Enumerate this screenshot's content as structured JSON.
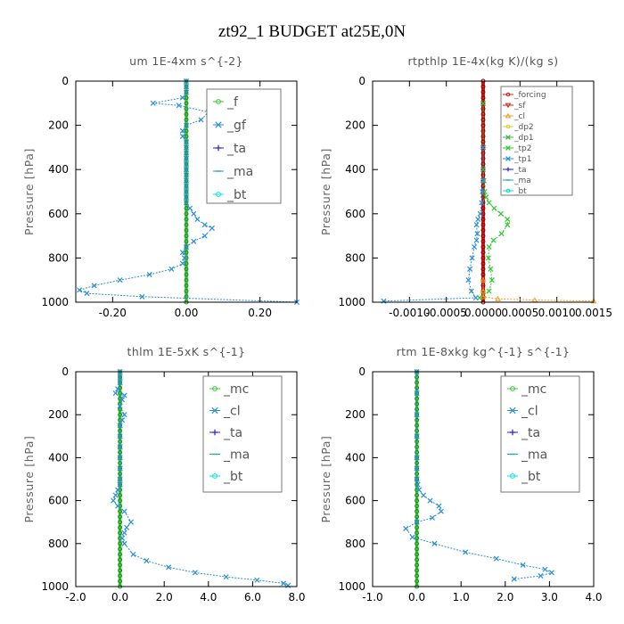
{
  "title": "zt92_1  BUDGET at25E,0N",
  "colors": {
    "f": "#3cc43c",
    "gf": "#2a8fd6",
    "ta": "#2222cc",
    "ma": "#19a8b8",
    "bt": "#00e5e5",
    "mc": "#3cc43c",
    "cl": "#2a8fd6",
    "forcing": "#cc2020",
    "sf": "#cc2020",
    "cl_r": "#f0a020",
    "dp2": "#d8d020",
    "dp1": "#3cb43c",
    "tp2": "#2ec82e",
    "tp1": "#2a8fd6",
    "ta_r": "#2222cc",
    "ma_r": "#19a8b8",
    "bt_r": "#00d8d8"
  },
  "chart_data": [
    {
      "type": "line",
      "title": "um   1E-4xm  s^{-2}",
      "ylabel": "Pressure [hPa]",
      "xlim": [
        -0.3,
        0.3
      ],
      "ylim": [
        1000,
        0
      ],
      "xticks": [
        "-0.20",
        "0.00",
        "0.20"
      ],
      "xtick_values": [
        -0.2,
        0.0,
        0.2
      ],
      "yticks": [
        "0",
        "200",
        "400",
        "600",
        "800",
        "1000"
      ],
      "ytick_values": [
        0,
        200,
        400,
        600,
        800,
        1000
      ],
      "legend_font": 14,
      "series": [
        {
          "name": "_f",
          "color_key": "f",
          "marker": "o",
          "x": [
            0,
            0,
            0,
            0,
            0,
            0,
            0,
            0,
            0,
            0,
            0,
            0,
            0,
            0,
            0,
            0,
            0,
            0,
            0,
            0,
            0,
            0,
            0,
            0,
            0,
            0,
            0,
            0,
            0,
            0,
            0,
            0,
            0,
            0,
            0,
            0,
            0,
            0,
            0,
            0,
            0
          ],
          "y": [
            0,
            25,
            50,
            75,
            100,
            125,
            150,
            175,
            200,
            225,
            250,
            275,
            300,
            325,
            350,
            375,
            400,
            425,
            450,
            475,
            500,
            525,
            550,
            575,
            600,
            625,
            650,
            675,
            700,
            725,
            750,
            775,
            800,
            825,
            850,
            875,
            900,
            925,
            950,
            975,
            1000
          ]
        },
        {
          "name": "_gf",
          "color_key": "gf",
          "marker": "x",
          "x": [
            0.0,
            0.0,
            0.0,
            -0.01,
            -0.09,
            -0.02,
            0.06,
            0.04,
            0.0,
            -0.01,
            -0.01,
            0.0,
            0.0,
            0.0,
            0.0,
            0.0,
            0.0,
            0.0,
            0.0,
            0.0,
            0.0,
            0.0,
            0.0,
            0.01,
            0.02,
            0.03,
            0.05,
            0.07,
            0.05,
            0.02,
            0.0,
            -0.01,
            -0.005,
            -0.01,
            -0.04,
            -0.1,
            -0.18,
            -0.25,
            -0.29,
            -0.27,
            -0.12,
            0.3
          ],
          "y": [
            0,
            25,
            50,
            75,
            100,
            110,
            140,
            175,
            200,
            225,
            250,
            275,
            300,
            325,
            350,
            375,
            400,
            425,
            450,
            475,
            500,
            525,
            550,
            575,
            600,
            625,
            650,
            665,
            700,
            725,
            750,
            775,
            800,
            825,
            850,
            875,
            900,
            925,
            945,
            960,
            975,
            1000
          ]
        },
        {
          "name": "_ta",
          "color_key": "ta",
          "marker": "+",
          "x": [],
          "y": []
        },
        {
          "name": "_ma",
          "color_key": "ma",
          "marker": "-",
          "x": [],
          "y": []
        },
        {
          "name": "_bt",
          "color_key": "bt",
          "marker": "o",
          "x": [],
          "y": []
        }
      ]
    },
    {
      "type": "line",
      "title": "rtpthlp   1E-4x(kg K)/(kg s)",
      "ylabel": "Pressure [hPa]",
      "xlim": [
        -0.0015,
        0.0015
      ],
      "ylim": [
        1000,
        0
      ],
      "xticks": [
        "-0.0010",
        "-0.0005",
        "0.0000",
        "0.0005",
        "0.0010",
        "0.0015"
      ],
      "xtick_values": [
        -0.001,
        -0.0005,
        0.0,
        0.0005,
        0.001,
        0.0015
      ],
      "yticks": [
        "0",
        "200",
        "400",
        "600",
        "800",
        "1000"
      ],
      "ytick_values": [
        0,
        200,
        400,
        600,
        800,
        1000
      ],
      "legend_font": 9,
      "series": [
        {
          "name": "_forcing",
          "color_key": "forcing",
          "marker": "o",
          "x": [
            0,
            0,
            0,
            0,
            0,
            0,
            0,
            0,
            0,
            0,
            0,
            0,
            0,
            0,
            0,
            0,
            0,
            0,
            0,
            0,
            0,
            0,
            0,
            0,
            0,
            0,
            0,
            0,
            0,
            0,
            0,
            0,
            0,
            0,
            0,
            0,
            0,
            0,
            0,
            0,
            0
          ],
          "y": [
            0,
            25,
            50,
            75,
            100,
            125,
            150,
            175,
            200,
            225,
            250,
            275,
            300,
            325,
            350,
            375,
            400,
            425,
            450,
            475,
            500,
            525,
            550,
            575,
            600,
            625,
            650,
            675,
            700,
            725,
            750,
            775,
            800,
            825,
            850,
            875,
            900,
            925,
            950,
            975,
            1000
          ]
        },
        {
          "name": "_sf",
          "color_key": "sf",
          "marker": "v",
          "x": [],
          "y": []
        },
        {
          "name": "_cl",
          "color_key": "cl_r",
          "marker": "^",
          "x": [
            0,
            0,
            0,
            0.0002,
            0.0007,
            0.0015
          ],
          "y": [
            900,
            950,
            975,
            985,
            990,
            995
          ]
        },
        {
          "name": "_dp2",
          "color_key": "dp2",
          "marker": "o",
          "x": [],
          "y": []
        },
        {
          "name": "_dp1",
          "color_key": "dp1",
          "marker": "x",
          "x": [],
          "y": []
        },
        {
          "name": "_tp2",
          "color_key": "tp2",
          "marker": "x",
          "x": [
            0,
            0,
            0,
            1e-05,
            2e-05,
            4e-05,
            8e-05,
            0.00015,
            0.00024,
            0.00033,
            0.00033,
            0.00025,
            0.00014,
            8e-05,
            7e-05,
            0.0001,
            0.00012,
            8e-05,
            -5e-05
          ],
          "y": [
            100,
            300,
            400,
            450,
            500,
            525,
            550,
            575,
            600,
            625,
            650,
            690,
            720,
            750,
            800,
            850,
            900,
            950,
            980
          ]
        },
        {
          "name": "_tp1",
          "color_key": "tp1",
          "marker": "x",
          "x": [
            0,
            0,
            -1e-05,
            -2e-05,
            -4e-05,
            -7e-05,
            -9e-05,
            -8e-05,
            -9e-05,
            -0.00012,
            -0.00015,
            -0.00018,
            -0.0002,
            -0.00016,
            -0.0001,
            -0.00135
          ],
          "y": [
            300,
            450,
            500,
            550,
            600,
            625,
            650,
            690,
            720,
            750,
            800,
            850,
            900,
            950,
            980,
            995
          ]
        },
        {
          "name": "_ta",
          "color_key": "ta_r",
          "marker": "+",
          "x": [],
          "y": []
        },
        {
          "name": "_ma",
          "color_key": "ma_r",
          "marker": "-",
          "x": [],
          "y": []
        },
        {
          "name": "_bt",
          "color_key": "bt_r",
          "marker": "o",
          "x": [],
          "y": []
        }
      ]
    },
    {
      "type": "line",
      "title": "thlm   1E-5xK  s^{-1}",
      "ylabel": "Pressure [hPa]",
      "xlim": [
        -2.0,
        8.0
      ],
      "ylim": [
        1000,
        0
      ],
      "xticks": [
        "-2.0",
        "0.0",
        "2.0",
        "4.0",
        "6.0",
        "8.0"
      ],
      "xtick_values": [
        -2,
        0,
        2,
        4,
        6,
        8
      ],
      "yticks": [
        "0",
        "200",
        "400",
        "600",
        "800",
        "1000"
      ],
      "ytick_values": [
        0,
        200,
        400,
        600,
        800,
        1000
      ],
      "legend_font": 14,
      "series": [
        {
          "name": "_mc",
          "color_key": "mc",
          "marker": "o",
          "x": [
            0,
            0,
            0,
            0,
            0,
            0,
            0,
            0,
            0,
            0,
            0,
            0,
            0,
            0,
            0,
            0,
            0,
            0,
            0,
            0,
            0,
            0,
            0,
            0,
            0,
            0,
            0,
            0,
            0,
            0,
            0,
            0,
            0,
            0,
            0,
            0,
            0,
            0,
            0,
            0,
            0
          ],
          "y": [
            0,
            25,
            50,
            75,
            100,
            125,
            150,
            175,
            200,
            225,
            250,
            275,
            300,
            325,
            350,
            375,
            400,
            425,
            450,
            475,
            500,
            525,
            550,
            575,
            600,
            625,
            650,
            675,
            700,
            725,
            750,
            775,
            800,
            825,
            850,
            875,
            900,
            925,
            950,
            975,
            1000
          ]
        },
        {
          "name": "_cl",
          "color_key": "cl",
          "marker": "x",
          "x": [
            0.0,
            0.0,
            0.0,
            -0.1,
            -0.2,
            0.2,
            0.1,
            0.0,
            0.2,
            0.1,
            0.0,
            0.0,
            0.0,
            0.0,
            0.0,
            0.0,
            0.0,
            -0.1,
            -0.2,
            -0.3,
            -0.1,
            0.2,
            0.5,
            0.3,
            0.2,
            0.1,
            0.2,
            0.6,
            1.2,
            2.2,
            3.4,
            4.8,
            6.2,
            7.4,
            7.6
          ],
          "y": [
            0,
            25,
            50,
            80,
            100,
            110,
            130,
            160,
            200,
            225,
            250,
            300,
            350,
            400,
            450,
            500,
            525,
            550,
            575,
            600,
            625,
            650,
            700,
            725,
            750,
            775,
            800,
            850,
            880,
            910,
            935,
            955,
            970,
            985,
            995
          ]
        },
        {
          "name": "_ta",
          "color_key": "ta",
          "marker": "+",
          "x": [],
          "y": []
        },
        {
          "name": "_ma",
          "color_key": "ma",
          "marker": "-",
          "x": [],
          "y": []
        },
        {
          "name": "_bt",
          "color_key": "bt",
          "marker": "o",
          "x": [],
          "y": []
        }
      ]
    },
    {
      "type": "line",
      "title": "rtm   1E-8xkg  kg^{-1}  s^{-1}",
      "ylabel": "Pressure [hPa]",
      "xlim": [
        -1.0,
        4.0
      ],
      "ylim": [
        1000,
        0
      ],
      "xticks": [
        "-1.0",
        "0.0",
        "1.0",
        "2.0",
        "3.0",
        "4.0"
      ],
      "xtick_values": [
        -1,
        0,
        1,
        2,
        3,
        4
      ],
      "yticks": [
        "0",
        "200",
        "400",
        "600",
        "800",
        "1000"
      ],
      "ytick_values": [
        0,
        200,
        400,
        600,
        800,
        1000
      ],
      "legend_font": 14,
      "series": [
        {
          "name": "_mc",
          "color_key": "mc",
          "marker": "o",
          "x": [
            0,
            0,
            0,
            0,
            0,
            0,
            0,
            0,
            0,
            0,
            0,
            0,
            0,
            0,
            0,
            0,
            0,
            0,
            0,
            0,
            0,
            0,
            0,
            0,
            0,
            0,
            0,
            0,
            0,
            0,
            0,
            0,
            0,
            0,
            0,
            0,
            0,
            0,
            0,
            0,
            0
          ],
          "y": [
            0,
            25,
            50,
            75,
            100,
            125,
            150,
            175,
            200,
            225,
            250,
            275,
            300,
            325,
            350,
            375,
            400,
            425,
            450,
            475,
            500,
            525,
            550,
            575,
            600,
            625,
            650,
            675,
            700,
            725,
            750,
            775,
            800,
            825,
            850,
            875,
            900,
            925,
            950,
            975,
            1000
          ]
        },
        {
          "name": "_cl",
          "color_key": "cl",
          "marker": "x",
          "x": [
            0,
            0,
            0,
            0,
            0,
            0,
            0,
            0.02,
            0.05,
            0.15,
            0.3,
            0.5,
            0.55,
            0.35,
            0.0,
            -0.25,
            -0.1,
            0.4,
            1.1,
            1.8,
            2.4,
            2.9,
            3.05,
            2.8,
            2.2
          ],
          "y": [
            0,
            100,
            200,
            300,
            400,
            450,
            500,
            525,
            550,
            575,
            600,
            625,
            650,
            680,
            700,
            730,
            770,
            800,
            840,
            870,
            900,
            920,
            935,
            950,
            965
          ]
        },
        {
          "name": "_ta",
          "color_key": "ta",
          "marker": "+",
          "x": [],
          "y": []
        },
        {
          "name": "_ma",
          "color_key": "ma",
          "marker": "-",
          "x": [],
          "y": []
        },
        {
          "name": "_bt",
          "color_key": "bt",
          "marker": "o",
          "x": [],
          "y": []
        }
      ]
    }
  ]
}
